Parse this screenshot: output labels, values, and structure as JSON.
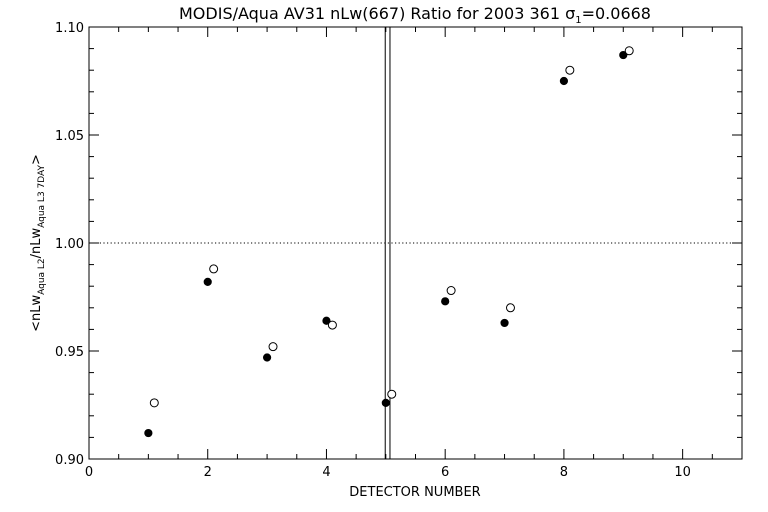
{
  "chart_data": {
    "type": "scatter",
    "title": {
      "main": "MODIS/Aqua AV31 nLw(667) Ratio for 2003 361 ",
      "sigma": "σ",
      "sigma_sub": "1",
      "sigma_value": "=0.0668"
    },
    "xlabel": "DETECTOR NUMBER",
    "ylabel_parts": {
      "open": "<nLw",
      "sub1": "Aqua L2",
      "mid": "/nLw",
      "sub2": "Aqua L3 7DAY",
      "close": ">"
    },
    "xlim": [
      0,
      11
    ],
    "ylim": [
      0.9,
      1.1
    ],
    "x_ticks": [
      0,
      2,
      4,
      6,
      8,
      10
    ],
    "x_tick_labels": [
      "0",
      "2",
      "4",
      "6",
      "8",
      "10"
    ],
    "y_ticks": [
      0.9,
      0.95,
      1.0,
      1.05,
      1.1
    ],
    "y_tick_labels": [
      "0.90",
      "0.95",
      "1.00",
      "1.05",
      "1.10"
    ],
    "reference_line_y": 1.0,
    "vertical_lines_x": [
      4.99,
      5.07
    ],
    "series": [
      {
        "marker": "filled-circle",
        "x": [
          1,
          2,
          3,
          4,
          5,
          6,
          7,
          8,
          9
        ],
        "y": [
          0.912,
          0.982,
          0.947,
          0.964,
          0.926,
          0.973,
          0.963,
          1.075,
          1.087
        ]
      },
      {
        "marker": "open-circle",
        "x": [
          1.1,
          2.1,
          3.1,
          4.1,
          5.1,
          6.1,
          7.1,
          8.1,
          9.1
        ],
        "y": [
          0.926,
          0.988,
          0.952,
          0.962,
          0.93,
          0.978,
          0.97,
          1.08,
          1.089
        ]
      }
    ],
    "grid": false,
    "legend": "none"
  }
}
